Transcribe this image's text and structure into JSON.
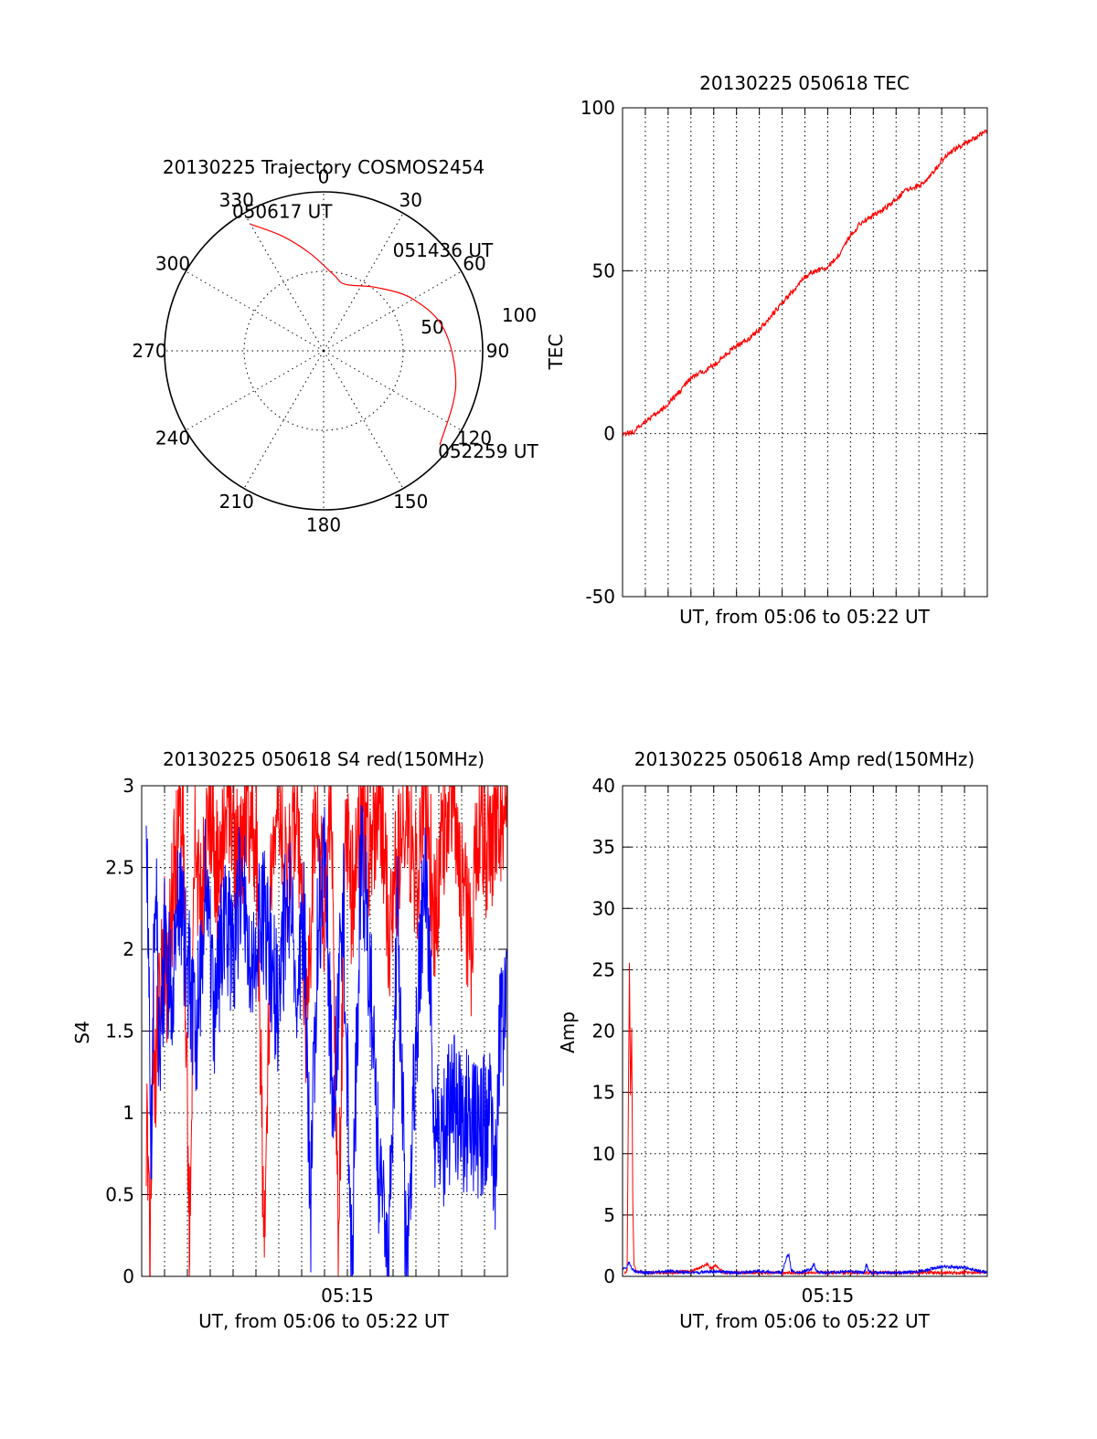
{
  "chart_data": [
    {
      "type": "polar",
      "title": "20130225 Trajectory COSMOS2454",
      "angle_ticks": [
        "0",
        "30",
        "60",
        "90",
        "120",
        "150",
        "180",
        "210",
        "240",
        "270",
        "300",
        "330"
      ],
      "radius_ticks": [
        "50",
        "100"
      ],
      "rlim": [
        0,
        100
      ],
      "grid": true,
      "track": {
        "color": "#ff0000",
        "points": [
          [
            -30,
            92
          ],
          [
            -20,
            77
          ],
          [
            -8,
            62
          ],
          [
            8,
            48
          ],
          [
            18,
            44
          ],
          [
            40,
            52
          ],
          [
            60,
            65
          ],
          [
            80,
            77
          ],
          [
            105,
            86
          ],
          [
            129,
            94
          ]
        ]
      },
      "annotations": [
        {
          "text": "050617 UT",
          "az": -30,
          "r": 92
        },
        {
          "text": "051436 UT",
          "az": 18,
          "r": 44
        },
        {
          "text": "052259 UT",
          "az": 129,
          "r": 94
        }
      ]
    },
    {
      "type": "line",
      "title": "20130225 050618 TEC",
      "xlabel": "UT, from 05:06 to 05:22 UT",
      "ylabel": "TEC",
      "ylim": [
        -50,
        100
      ],
      "yticks": [
        "-50",
        "0",
        "50",
        "100"
      ],
      "xlim": [
        0,
        16
      ],
      "grid": true,
      "series": [
        {
          "color": "#ff0000",
          "x": [
            0,
            0.5,
            1,
            1.5,
            2,
            2.5,
            3,
            3.5,
            4,
            4.5,
            5,
            5.5,
            6,
            6.5,
            7,
            7.5,
            8,
            8.5,
            9,
            9.5,
            10,
            10.5,
            11,
            11.5,
            12,
            12.5,
            13,
            13.5,
            14,
            14.5,
            15,
            15.5,
            16
          ],
          "y": [
            0,
            0.5,
            4,
            6,
            9,
            13,
            17,
            19,
            21,
            24,
            27,
            29,
            32,
            36,
            40,
            44,
            48,
            50,
            51,
            55,
            61,
            65,
            67,
            69,
            72,
            75,
            76,
            79,
            84,
            87,
            89,
            91,
            93
          ]
        }
      ]
    },
    {
      "type": "line",
      "title": "20130225 050618 S4 red(150MHz)",
      "xlabel": "UT, from 05:06 to 05:22 UT",
      "ylabel": "S4",
      "ylim": [
        0,
        3
      ],
      "yticks": [
        "0",
        "0.5",
        "1",
        "1.5",
        "2",
        "2.5",
        "3"
      ],
      "xlim": [
        0,
        16
      ],
      "xticks": [
        {
          "value": 9,
          "label": "05:15"
        }
      ],
      "grid": true,
      "series": [
        {
          "color": "#ff0000",
          "x": [
            0.2,
            0.35,
            0.5,
            0.6,
            0.75,
            0.9,
            1.1,
            1.4,
            1.8,
            2.1,
            2.3,
            2.6,
            3.0,
            3.4,
            3.8,
            4.2,
            4.6,
            5.0,
            5.4,
            5.7,
            6.0,
            6.4,
            6.8,
            7.2,
            7.6,
            8.0,
            8.3,
            8.6,
            8.9,
            9.2,
            9.6,
            10.0,
            10.4,
            10.8,
            11.2,
            11.6,
            12.0,
            12.4,
            12.8,
            13.2,
            13.6,
            14.0,
            14.4,
            14.8,
            15.2,
            15.6,
            16.0
          ],
          "y": [
            1.0,
            0.1,
            1.5,
            1.2,
            1.6,
            2.2,
            1.8,
            2.4,
            2.9,
            0.0,
            2.8,
            2.2,
            2.9,
            2.3,
            3.0,
            2.5,
            2.9,
            2.7,
            0.0,
            2.8,
            3.0,
            2.4,
            3.0,
            1.5,
            2.9,
            2.2,
            3.0,
            0.0,
            2.8,
            2.3,
            2.9,
            2.6,
            3.0,
            2.1,
            2.5,
            2.9,
            2.4,
            3.0,
            2.2,
            2.7,
            3.0,
            2.4,
            2.0,
            2.9,
            2.5,
            2.8,
            3.0
          ]
        },
        {
          "color": "#0000ff",
          "x": [
            0.2,
            0.4,
            0.6,
            0.8,
            1.0,
            1.3,
            1.6,
            2.0,
            2.4,
            2.8,
            3.2,
            3.6,
            4.0,
            4.4,
            4.8,
            5.2,
            5.6,
            6.0,
            6.4,
            6.8,
            7.1,
            7.4,
            7.7,
            8.0,
            8.4,
            8.8,
            9.2,
            9.6,
            10.0,
            10.4,
            10.8,
            11.2,
            11.6,
            12.0,
            12.4,
            12.8,
            13.2,
            13.6,
            14.0,
            14.4,
            14.8,
            15.2,
            15.5,
            15.7,
            15.85,
            16.0
          ],
          "y": [
            3.0,
            0.7,
            2.5,
            1.1,
            2.0,
            1.8,
            2.3,
            1.9,
            1.5,
            2.4,
            1.6,
            2.2,
            1.9,
            2.5,
            1.7,
            2.3,
            2.0,
            1.6,
            2.4,
            1.8,
            2.2,
            0.45,
            2.1,
            2.6,
            0.9,
            2.4,
            0.0,
            2.7,
            1.8,
            0.6,
            0.0,
            2.2,
            0.0,
            1.4,
            2.6,
            1.0,
            0.8,
            1.1,
            0.9,
            1.0,
            0.85,
            1.0,
            0.7,
            1.6,
            1.5,
            2.0
          ]
        }
      ]
    },
    {
      "type": "line",
      "title": "20130225 050618 Amp red(150MHz)",
      "xlabel": "UT, from 05:06 to 05:22 UT",
      "ylabel": "Amp",
      "ylim": [
        0,
        40
      ],
      "yticks": [
        "0",
        "5",
        "10",
        "15",
        "20",
        "25",
        "30",
        "35",
        "40"
      ],
      "xlim": [
        0,
        16
      ],
      "xticks": [
        {
          "value": 9,
          "label": "05:15"
        }
      ],
      "grid": true,
      "series": [
        {
          "color": "#ff0000",
          "x": [
            0.1,
            0.2,
            0.25,
            0.3,
            0.35,
            0.4,
            0.45,
            0.5,
            0.6,
            1.0,
            2.0,
            3.0,
            3.5,
            3.7,
            3.9,
            4.1,
            4.4,
            5.0,
            8.0,
            12.0,
            16.0
          ],
          "y": [
            0.3,
            0.5,
            12,
            25.5,
            15,
            20,
            6,
            1.0,
            0.4,
            0.3,
            0.3,
            0.4,
            0.8,
            1.0,
            0.6,
            0.9,
            0.3,
            0.3,
            0.3,
            0.3,
            0.3
          ]
        },
        {
          "color": "#0000ff",
          "x": [
            0,
            0.2,
            0.3,
            0.4,
            0.6,
            1.0,
            2.0,
            3.0,
            4.0,
            5.0,
            6.0,
            7.0,
            7.2,
            7.3,
            7.4,
            7.6,
            8.0,
            8.3,
            8.4,
            8.5,
            9.0,
            10.0,
            10.6,
            10.7,
            10.8,
            11.0,
            12.0,
            13.0,
            13.5,
            14.0,
            15.0,
            16.0
          ],
          "y": [
            0.5,
            0.8,
            1.2,
            0.6,
            0.4,
            0.3,
            0.4,
            0.3,
            0.4,
            0.3,
            0.4,
            0.3,
            1.6,
            1.7,
            0.5,
            0.3,
            0.4,
            0.6,
            1.1,
            0.4,
            0.3,
            0.4,
            0.3,
            1.0,
            0.4,
            0.3,
            0.3,
            0.4,
            0.6,
            0.8,
            0.7,
            0.3
          ]
        }
      ]
    }
  ]
}
